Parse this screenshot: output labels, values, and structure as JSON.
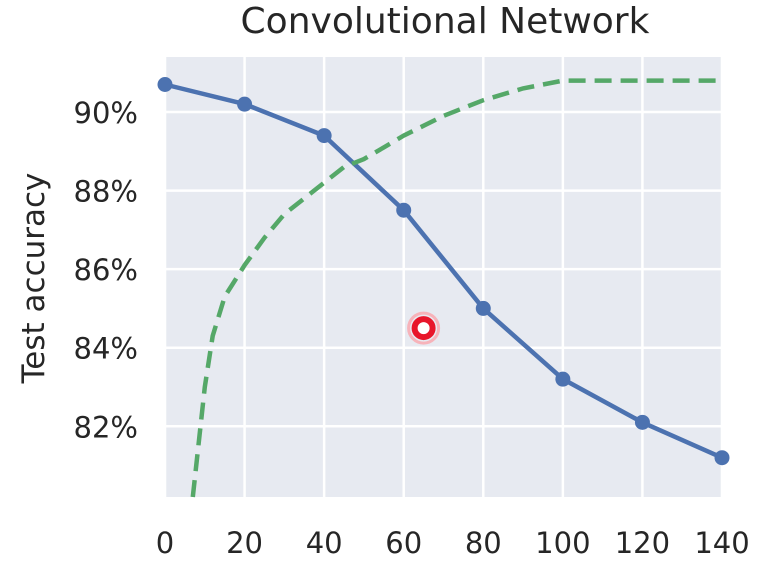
{
  "chart_data": {
    "type": "line",
    "title": "Convolutional Network",
    "xlabel": "",
    "ylabel": "Test accuracy",
    "x_ticks": [
      "0",
      "20",
      "40",
      "60",
      "80",
      "100",
      "120",
      "140"
    ],
    "y_ticks": [
      {
        "value": 82,
        "label": "82%"
      },
      {
        "value": 84,
        "label": "84%"
      },
      {
        "value": 86,
        "label": "86%"
      },
      {
        "value": 88,
        "label": "88%"
      },
      {
        "value": 90,
        "label": "90%"
      }
    ],
    "xlim": [
      0,
      140
    ],
    "ylim": [
      80.2,
      91.4
    ],
    "grid": true,
    "series": [
      {
        "style": "solid-markers",
        "color": "#4c72b0",
        "x": [
          0,
          20,
          40,
          60,
          80,
          100,
          120,
          140
        ],
        "y": [
          90.7,
          90.2,
          89.4,
          87.5,
          85.0,
          83.2,
          82.1,
          81.2
        ]
      },
      {
        "style": "dashed",
        "color": "#55a868",
        "x": [
          7,
          10,
          12,
          15,
          20,
          25,
          30,
          35,
          40,
          45,
          50,
          55,
          60,
          70,
          80,
          90,
          100,
          110,
          120,
          130,
          140
        ],
        "y": [
          80.2,
          83.0,
          84.3,
          85.3,
          86.1,
          86.8,
          87.4,
          87.8,
          88.2,
          88.6,
          88.8,
          89.1,
          89.4,
          89.9,
          90.3,
          90.6,
          90.8,
          90.8,
          90.8,
          90.8,
          90.8
        ]
      }
    ]
  },
  "cursor": {
    "icon": "click-indicator-icon",
    "color": "#e8162b",
    "x": 65,
    "y": 84.5
  }
}
